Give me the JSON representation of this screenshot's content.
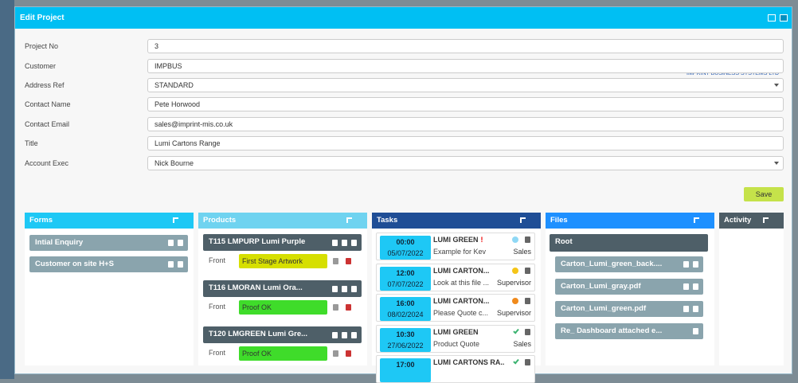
{
  "window": {
    "title": "Edit Project"
  },
  "form": {
    "fields": [
      {
        "label": "Project No",
        "value": "3"
      },
      {
        "label": "Customer",
        "value": "IMPBUS"
      },
      {
        "label": "Address Ref",
        "value": "STANDARD",
        "dropdown": true
      },
      {
        "label": "Contact Name",
        "value": "Pete Horwood"
      },
      {
        "label": "Contact Email",
        "value": "sales@imprint-mis.co.uk"
      },
      {
        "label": "Title",
        "value": "Lumi Cartons Range"
      },
      {
        "label": "Account Exec",
        "value": "Nick Bourne",
        "dropdown": true
      }
    ],
    "customer_note": "IMPRINT BUSINESS SYSTEMS LTD",
    "save": "Save"
  },
  "panels": {
    "forms": {
      "title": "Forms",
      "color": "#1ec8f5",
      "items": [
        "Intial Enquiry",
        "Customer on site H+S"
      ]
    },
    "products": {
      "title": "Products",
      "color": "#6fd3f0",
      "items": [
        {
          "name": "T115 LMPURP Lumi Purple",
          "part": "Front",
          "status": "First Stage Artwork",
          "status_color": "#d6df00"
        },
        {
          "name": "T116 LMORAN Lumi Ora...",
          "part": "Front",
          "status": "Proof OK",
          "status_color": "#3fdc2a"
        },
        {
          "name": "T120 LMGREEN Lumi Gre...",
          "part": "Front",
          "status": "Proof OK",
          "status_color": "#3fdc2a"
        }
      ]
    },
    "tasks": {
      "title": "Tasks",
      "color": "#1f4e96",
      "items": [
        {
          "time": "00:00",
          "date": "05/07/2022",
          "title": "LUMI GREEN",
          "flag": "!",
          "desc": "Example for Kev",
          "role": "Sales",
          "indicator": "dot",
          "indicator_color": "#8fd8f5"
        },
        {
          "time": "12:00",
          "date": "07/07/2022",
          "title": "LUMI CARTON...",
          "desc": "Look at this file ...",
          "role": "Supervisor",
          "indicator": "dot",
          "indicator_color": "#f5c518"
        },
        {
          "time": "16:00",
          "date": "08/02/2024",
          "title": "LUMI CARTON...",
          "desc": "Please Quote c...",
          "role": "Supervisor",
          "indicator": "dot",
          "indicator_color": "#f08a1c"
        },
        {
          "time": "10:30",
          "date": "27/06/2022",
          "title": "LUMI GREEN",
          "desc": "Product Quote",
          "role": "Sales",
          "indicator": "check",
          "indicator_color": "#3cb371"
        },
        {
          "time": "17:00",
          "title": "LUMI CARTONS RA...",
          "indicator": "check",
          "indicator_color": "#3cb371"
        }
      ]
    },
    "files": {
      "title": "Files",
      "color": "#1e90ff",
      "root": "Root",
      "items": [
        {
          "name": "Carton_Lumi_green_back....",
          "viewable": true
        },
        {
          "name": "Carton_Lumi_gray.pdf",
          "viewable": true
        },
        {
          "name": "Carton_Lumi_green.pdf",
          "viewable": true
        },
        {
          "name": "Re_ Dashboard attached e...",
          "viewable": false
        }
      ]
    },
    "activity": {
      "title": "Activity",
      "color": "#4d5d66"
    }
  }
}
